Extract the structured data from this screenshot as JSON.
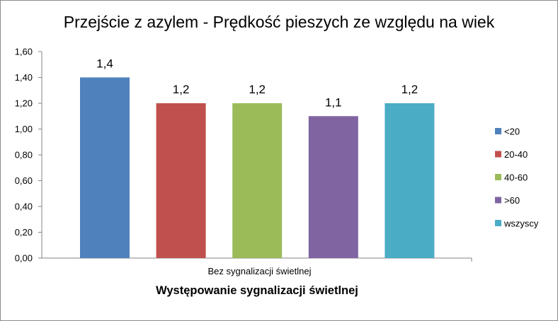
{
  "chart_data": {
    "type": "bar",
    "title": "Przejście z azylem - Prędkość pieszych ze względu na wiek",
    "xlabel": "Występowanie sygnalizacji  świetlnej",
    "ylabel": "",
    "categories": [
      "Bez sygnalizacji świetlnej"
    ],
    "series": [
      {
        "name": "<20",
        "values": [
          1.4
        ],
        "label": "1,4",
        "color": "#4f81bd"
      },
      {
        "name": "20-40",
        "values": [
          1.2
        ],
        "label": "1,2",
        "color": "#c0504d"
      },
      {
        "name": "40-60",
        "values": [
          1.2
        ],
        "label": "1,2",
        "color": "#9bbb59"
      },
      {
        "name": ">60",
        "values": [
          1.1
        ],
        "label": "1,1",
        "color": "#8064a2"
      },
      {
        "name": "wszyscy",
        "values": [
          1.2
        ],
        "label": "1,2",
        "color": "#4bacc6"
      }
    ],
    "ylim": [
      0,
      1.6
    ],
    "yticks": [
      0,
      0.2,
      0.4,
      0.6,
      0.8,
      1.0,
      1.2,
      1.4,
      1.6
    ],
    "ytick_labels": [
      "0,00",
      "0,20",
      "0,40",
      "0,60",
      "0,80",
      "1,00",
      "1,20",
      "1,40",
      "1,60"
    ],
    "grid": false,
    "legend_position": "right"
  }
}
